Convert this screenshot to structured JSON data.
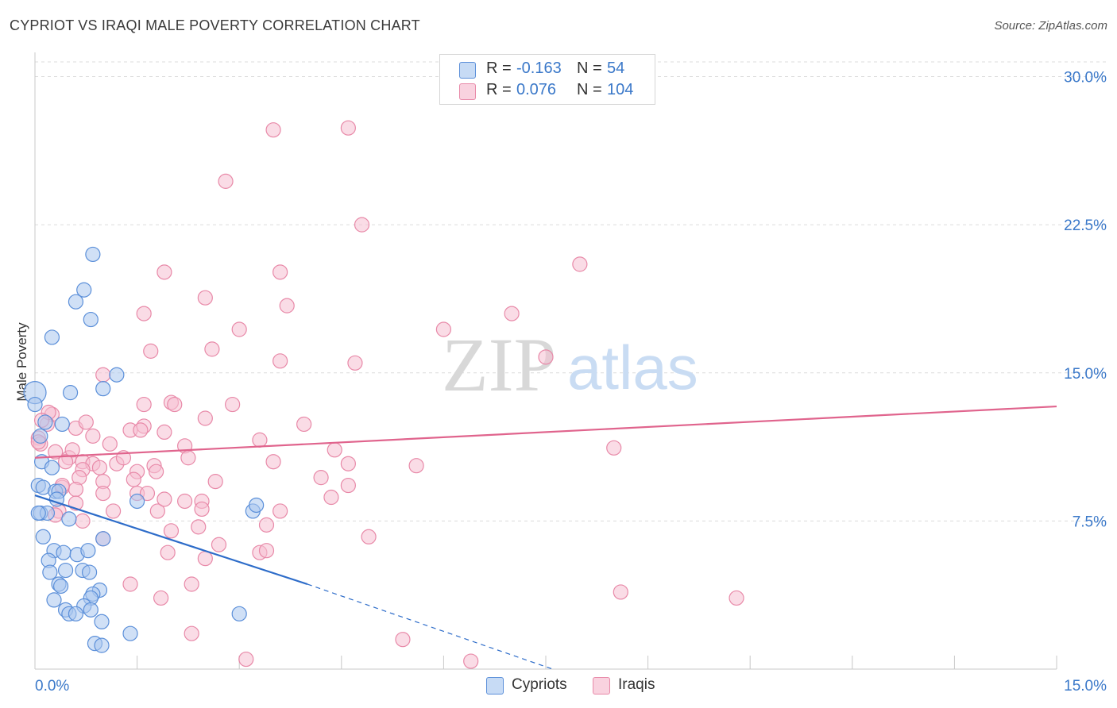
{
  "chart_data": {
    "type": "scatter",
    "title": "CYPRIOT VS IRAQI MALE POVERTY CORRELATION CHART",
    "source": "Source: ZipAtlas.com",
    "xlabel": "",
    "ylabel": "Male Poverty",
    "xlim": [
      0,
      15
    ],
    "ylim": [
      0,
      30
    ],
    "x_tick_labels": [
      "0.0%",
      "15.0%"
    ],
    "y_ticks": [
      7.5,
      15.0,
      22.5,
      30.0
    ],
    "y_tick_labels": [
      "7.5%",
      "15.0%",
      "22.5%",
      "30.0%"
    ],
    "watermark": {
      "zip": "ZIP",
      "atlas": "atlas"
    },
    "stats": [
      {
        "r_label": "R =",
        "r_value": "-0.163",
        "n_label": "N =",
        "n_value": "54"
      },
      {
        "r_label": "R =",
        "r_value": "0.076",
        "n_label": "N =",
        "n_value": "104"
      }
    ],
    "series": [
      {
        "name": "Cypriots",
        "color": "#5b8fd9",
        "fill": "#a9c6ef",
        "line_color": "#2d6cc9",
        "trend": {
          "x0": 0.0,
          "y0": 8.8,
          "x1": 4.0,
          "y1": 4.3,
          "dash_x1": 7.6,
          "dash_y1": 0.0
        },
        "points": [
          [
            0.0,
            14.0
          ],
          [
            0.0,
            13.4
          ],
          [
            0.08,
            11.8
          ],
          [
            0.1,
            10.5
          ],
          [
            0.15,
            12.5
          ],
          [
            0.25,
            10.2
          ],
          [
            0.4,
            12.4
          ],
          [
            0.05,
            9.3
          ],
          [
            0.12,
            9.2
          ],
          [
            0.3,
            9.0
          ],
          [
            0.35,
            9.0
          ],
          [
            0.32,
            8.6
          ],
          [
            0.08,
            7.9
          ],
          [
            0.18,
            7.9
          ],
          [
            0.5,
            7.6
          ],
          [
            0.12,
            6.7
          ],
          [
            0.28,
            6.0
          ],
          [
            0.42,
            5.9
          ],
          [
            0.62,
            5.8
          ],
          [
            0.78,
            6.0
          ],
          [
            0.2,
            5.5
          ],
          [
            0.22,
            4.9
          ],
          [
            0.7,
            5.0
          ],
          [
            0.8,
            4.9
          ],
          [
            0.35,
            4.3
          ],
          [
            0.38,
            4.2
          ],
          [
            0.95,
            4.0
          ],
          [
            0.85,
            3.8
          ],
          [
            0.82,
            3.6
          ],
          [
            0.28,
            3.5
          ],
          [
            0.72,
            3.2
          ],
          [
            0.45,
            3.0
          ],
          [
            0.5,
            2.8
          ],
          [
            0.6,
            2.8
          ],
          [
            0.82,
            3.0
          ],
          [
            0.98,
            2.4
          ],
          [
            0.88,
            1.3
          ],
          [
            0.98,
            1.2
          ],
          [
            1.4,
            1.8
          ],
          [
            3.0,
            2.8
          ],
          [
            0.6,
            18.6
          ],
          [
            0.72,
            19.2
          ],
          [
            0.82,
            17.7
          ],
          [
            0.25,
            16.8
          ],
          [
            0.85,
            21.0
          ],
          [
            1.2,
            14.9
          ],
          [
            1.0,
            14.2
          ],
          [
            0.52,
            14.0
          ],
          [
            1.5,
            8.5
          ],
          [
            3.2,
            8.0
          ],
          [
            3.25,
            8.3
          ],
          [
            0.05,
            7.9
          ],
          [
            0.45,
            5.0
          ],
          [
            1.0,
            6.6
          ]
        ]
      },
      {
        "name": "Iraqis",
        "color": "#e889a8",
        "fill": "#f6bfd1",
        "line_color": "#e0648d",
        "trend": {
          "x0": 0.0,
          "y0": 10.7,
          "x1": 15.0,
          "y1": 13.3
        },
        "points": [
          [
            3.5,
            27.3
          ],
          [
            4.6,
            27.4
          ],
          [
            2.8,
            24.7
          ],
          [
            4.8,
            22.5
          ],
          [
            8.0,
            20.5
          ],
          [
            1.9,
            20.1
          ],
          [
            3.6,
            20.1
          ],
          [
            2.5,
            18.8
          ],
          [
            3.7,
            18.4
          ],
          [
            1.6,
            18.0
          ],
          [
            7.0,
            18.0
          ],
          [
            3.0,
            17.2
          ],
          [
            6.0,
            17.2
          ],
          [
            1.7,
            16.1
          ],
          [
            2.6,
            16.2
          ],
          [
            3.6,
            15.6
          ],
          [
            4.7,
            15.5
          ],
          [
            7.5,
            15.8
          ],
          [
            1.0,
            14.9
          ],
          [
            1.6,
            13.4
          ],
          [
            2.0,
            13.5
          ],
          [
            2.05,
            13.4
          ],
          [
            2.9,
            13.4
          ],
          [
            2.5,
            12.7
          ],
          [
            0.25,
            12.9
          ],
          [
            0.18,
            12.4
          ],
          [
            1.6,
            12.3
          ],
          [
            1.4,
            12.1
          ],
          [
            1.55,
            12.1
          ],
          [
            1.9,
            12.0
          ],
          [
            3.95,
            12.4
          ],
          [
            0.6,
            12.2
          ],
          [
            0.05,
            11.7
          ],
          [
            0.08,
            11.4
          ],
          [
            0.85,
            11.8
          ],
          [
            1.1,
            11.4
          ],
          [
            2.2,
            11.3
          ],
          [
            8.5,
            11.2
          ],
          [
            4.4,
            11.1
          ],
          [
            0.3,
            11.0
          ],
          [
            0.5,
            10.7
          ],
          [
            0.45,
            10.5
          ],
          [
            0.7,
            10.5
          ],
          [
            0.85,
            10.4
          ],
          [
            1.2,
            10.4
          ],
          [
            1.3,
            10.7
          ],
          [
            1.75,
            10.3
          ],
          [
            2.25,
            10.7
          ],
          [
            3.5,
            10.5
          ],
          [
            5.6,
            10.3
          ],
          [
            0.7,
            10.1
          ],
          [
            0.95,
            10.2
          ],
          [
            1.5,
            10.0
          ],
          [
            1.78,
            10.0
          ],
          [
            0.65,
            9.7
          ],
          [
            1.0,
            9.5
          ],
          [
            1.45,
            9.6
          ],
          [
            2.65,
            9.5
          ],
          [
            4.2,
            9.7
          ],
          [
            4.6,
            9.3
          ],
          [
            0.4,
            9.2
          ],
          [
            0.6,
            9.1
          ],
          [
            1.0,
            8.9
          ],
          [
            1.5,
            8.9
          ],
          [
            1.65,
            8.9
          ],
          [
            2.2,
            8.5
          ],
          [
            2.45,
            8.5
          ],
          [
            4.35,
            8.7
          ],
          [
            0.6,
            8.4
          ],
          [
            1.15,
            8.0
          ],
          [
            1.8,
            8.0
          ],
          [
            2.45,
            8.1
          ],
          [
            3.6,
            8.0
          ],
          [
            0.35,
            8.0
          ],
          [
            3.4,
            7.3
          ],
          [
            2.0,
            7.0
          ],
          [
            2.4,
            7.2
          ],
          [
            4.9,
            6.7
          ],
          [
            1.0,
            6.6
          ],
          [
            2.7,
            6.3
          ],
          [
            3.3,
            5.9
          ],
          [
            3.4,
            6.0
          ],
          [
            1.95,
            5.9
          ],
          [
            2.5,
            5.6
          ],
          [
            1.4,
            4.3
          ],
          [
            2.3,
            4.3
          ],
          [
            8.6,
            3.9
          ],
          [
            10.3,
            3.6
          ],
          [
            1.85,
            3.6
          ],
          [
            2.3,
            1.8
          ],
          [
            3.1,
            0.5
          ],
          [
            5.4,
            1.5
          ],
          [
            6.4,
            0.4
          ],
          [
            0.7,
            7.5
          ],
          [
            0.2,
            13.0
          ],
          [
            0.1,
            12.6
          ],
          [
            0.05,
            11.5
          ],
          [
            0.55,
            11.1
          ],
          [
            0.75,
            12.5
          ],
          [
            3.3,
            11.6
          ],
          [
            4.6,
            10.4
          ],
          [
            0.4,
            9.3
          ],
          [
            0.3,
            7.8
          ],
          [
            1.9,
            8.6
          ]
        ]
      }
    ]
  }
}
